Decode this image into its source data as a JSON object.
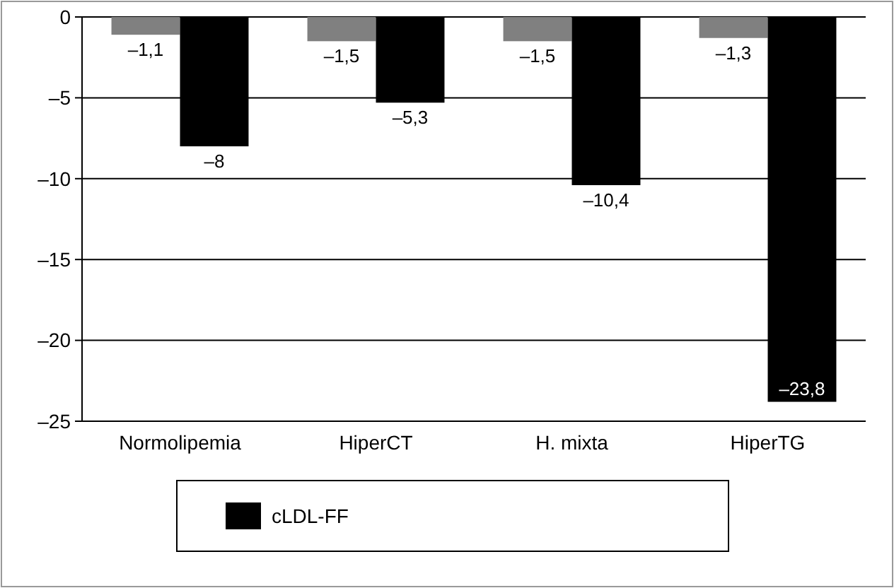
{
  "chart_data": {
    "type": "bar",
    "categories": [
      "Normolipemia",
      "HiperCT",
      "H. mixta",
      "HiperTG"
    ],
    "series": [
      {
        "color": "#808080",
        "values": [
          -1.1,
          -1.5,
          -1.5,
          -1.3
        ],
        "value_labels": [
          "–1,1",
          "–1,5",
          "–1,5",
          "–1,3"
        ]
      },
      {
        "name": "cLDL-FF",
        "color": "#000000",
        "values": [
          -8,
          -5.3,
          -10.4,
          -23.8
        ],
        "value_labels": [
          "–8",
          "–5,3",
          "–10,4",
          "–23,8"
        ]
      }
    ],
    "ylim": [
      -25,
      0
    ],
    "yticks": [
      0,
      {
        "value": -5,
        "label": "–5"
      },
      {
        "value": -10,
        "label": "–10"
      },
      {
        "value": -15,
        "label": "–15"
      },
      {
        "value": -20,
        "label": "–20"
      },
      {
        "value": -25,
        "label": "–25"
      }
    ],
    "grid": "y",
    "legend": "bottom"
  }
}
